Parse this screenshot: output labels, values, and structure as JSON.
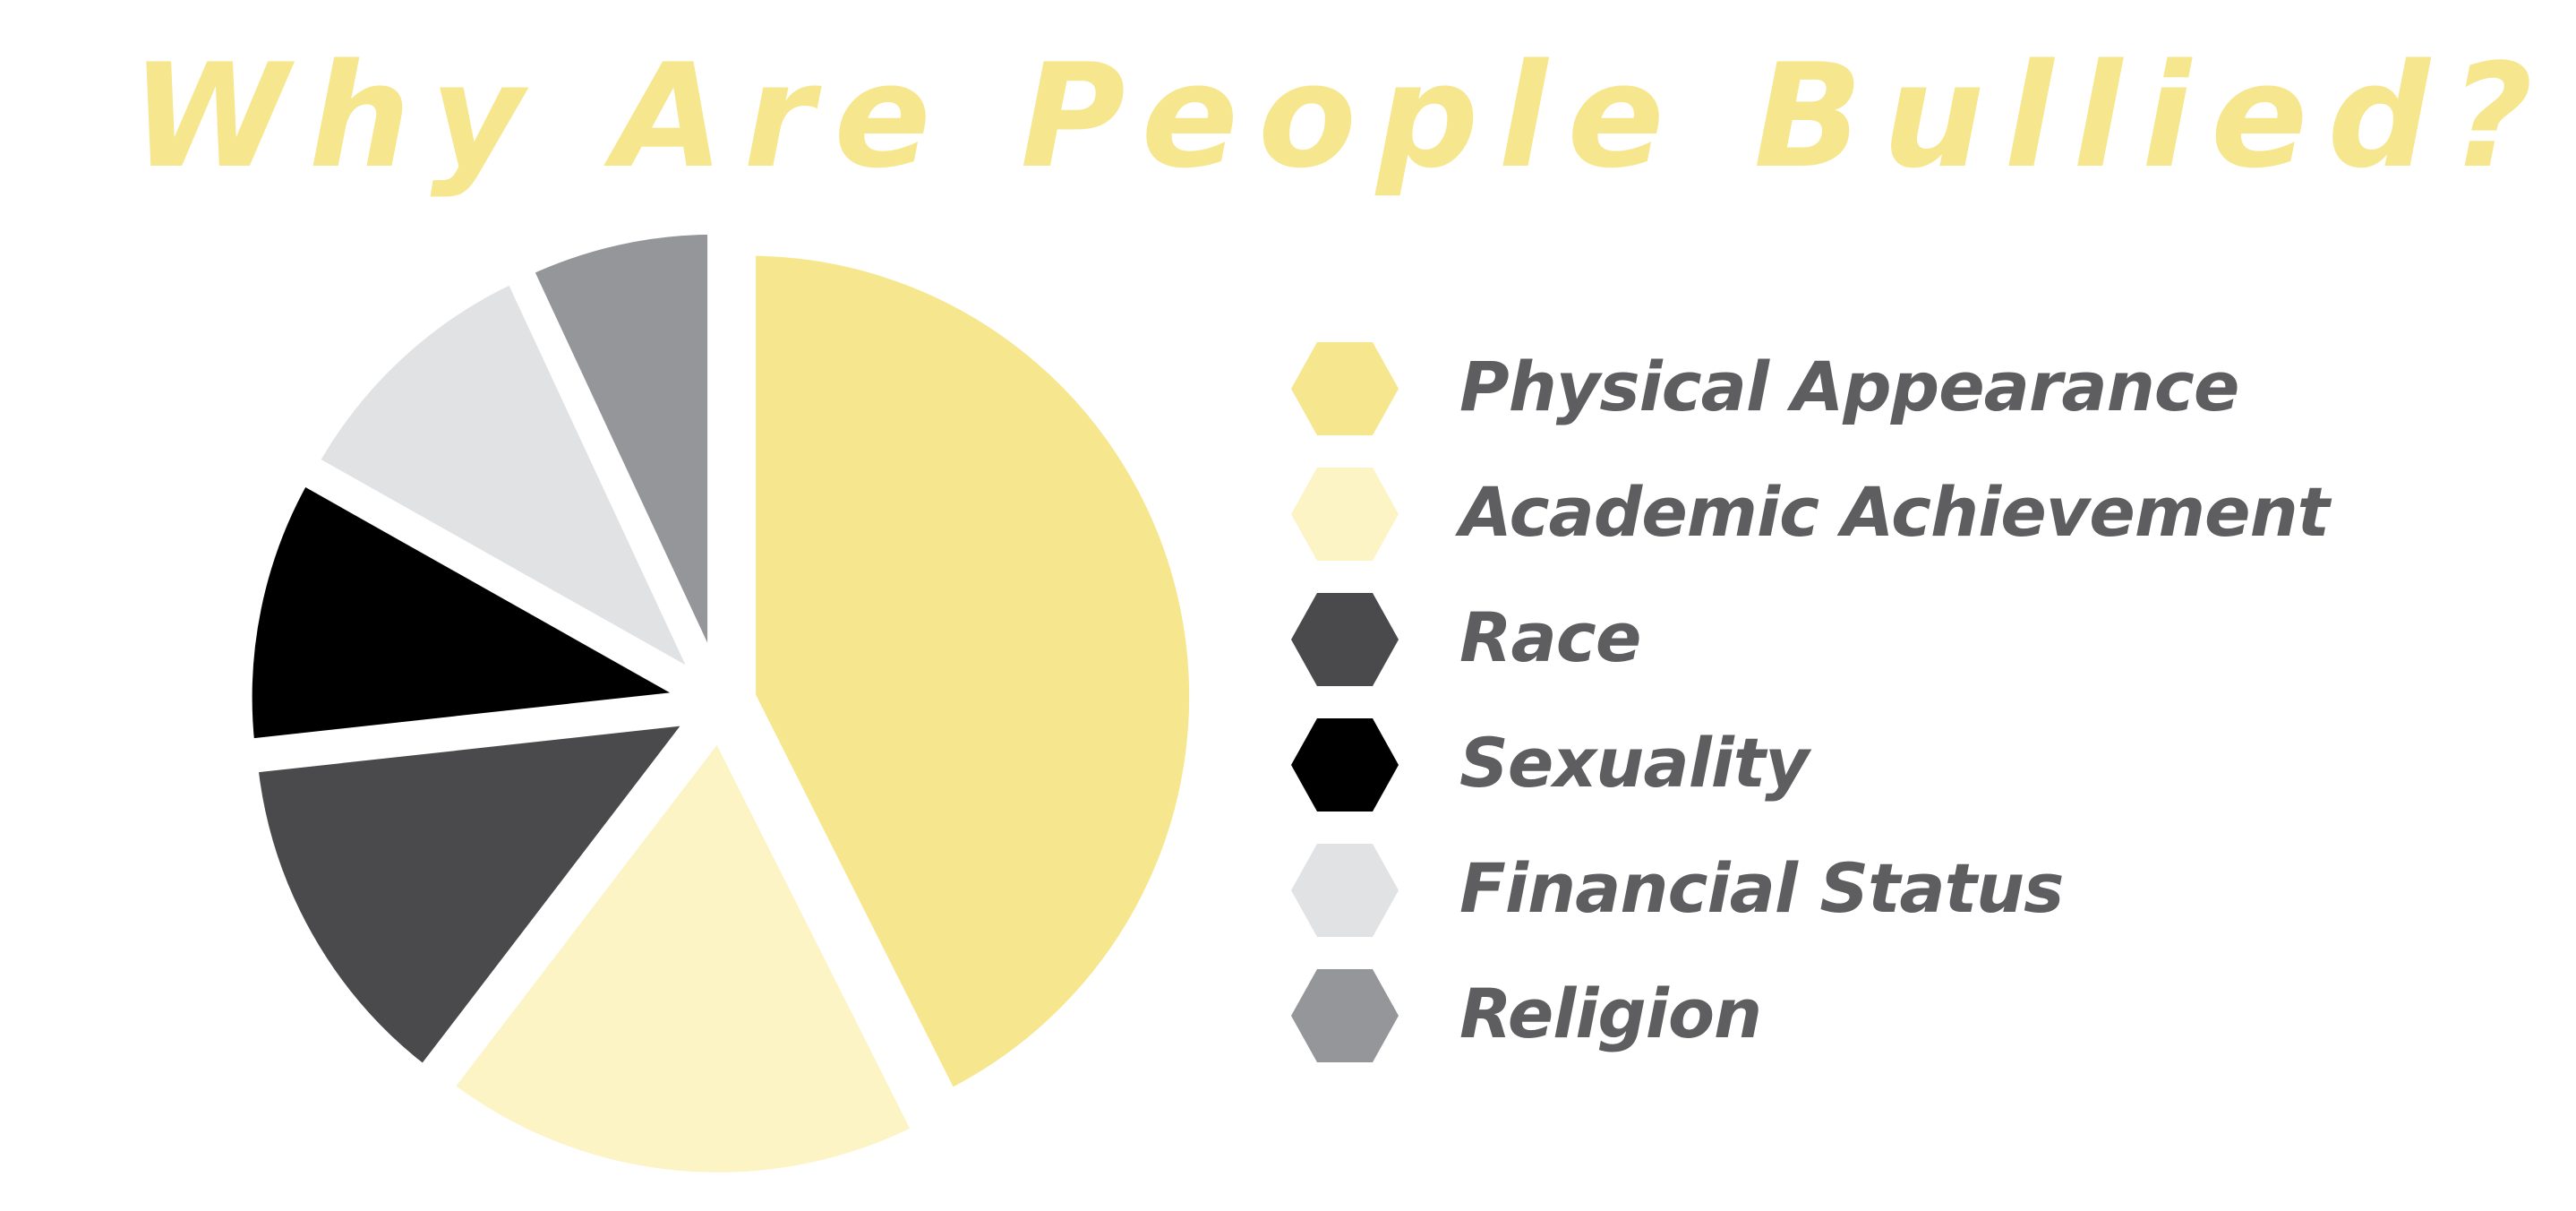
{
  "chart_data": {
    "type": "pie",
    "title": "Why Are People Bullied?",
    "categories": [
      "Physical Appearance",
      "Academic Achievement",
      "Race",
      "Sexuality",
      "Financial Status",
      "Religion"
    ],
    "values": [
      43,
      18,
      13,
      10,
      10,
      7
    ],
    "colors": [
      "#f6e78f",
      "#fcf4c4",
      "#4a4a4c",
      "#000000",
      "#e1e2e4",
      "#95969a"
    ],
    "legend": "right",
    "legend_marker": "hexagon"
  }
}
